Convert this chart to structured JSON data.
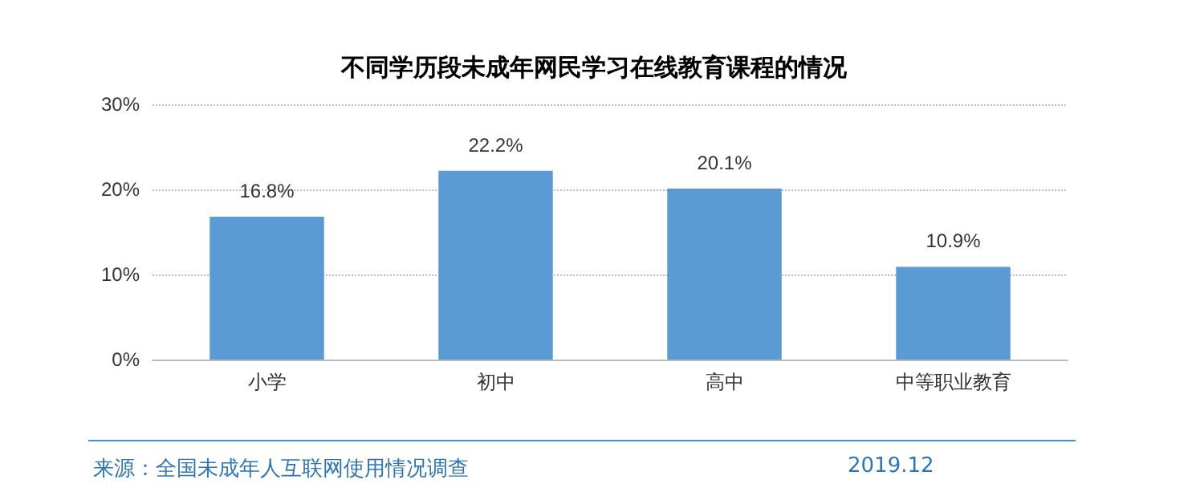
{
  "chart_data": {
    "type": "bar",
    "title": "不同学历段未成年网民学习在线教育课程的情况",
    "categories": [
      "小学",
      "初中",
      "高中",
      "中等职业教育"
    ],
    "values": [
      16.8,
      22.2,
      20.1,
      10.9
    ],
    "value_labels": [
      "16.8%",
      "22.2%",
      "20.1%",
      "10.9%"
    ],
    "color": "#5b9bd5",
    "ylim": [
      0,
      30
    ],
    "yticks": [
      {
        "value": 0,
        "label": "0%"
      },
      {
        "value": 10,
        "label": "10%"
      },
      {
        "value": 20,
        "label": "20%"
      },
      {
        "value": 30,
        "label": "30%"
      }
    ],
    "grid": "y",
    "annotations": [
      "来源：全国未成年人互联网使用情况调查",
      "2019.12"
    ]
  }
}
